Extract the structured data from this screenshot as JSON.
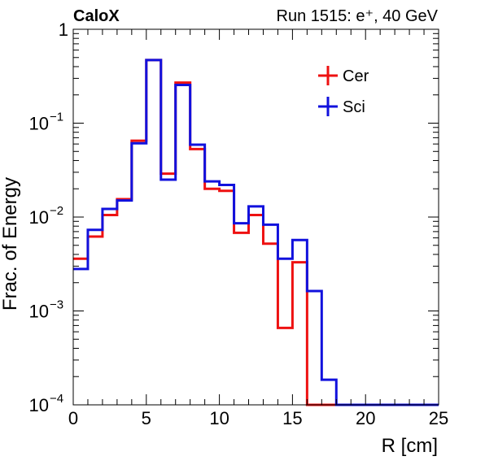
{
  "chart_data": {
    "type": "step-histogram",
    "brand_label": "CaloX",
    "run_label": "Run 1515: e⁺, 40 GeV",
    "xlabel": "R [cm]",
    "ylabel": "Frac. of Energy",
    "xlim": [
      0,
      25
    ],
    "ylim": [
      0.0001,
      1
    ],
    "yscale": "log",
    "bin_edges": [
      0,
      1,
      2,
      3,
      4,
      5,
      6,
      7,
      8,
      9,
      10,
      11,
      12,
      13,
      14,
      15,
      16,
      17,
      18,
      19,
      20,
      21,
      22,
      23,
      24,
      25
    ],
    "x_ticks": [
      {
        "value": 0,
        "label": "0"
      },
      {
        "value": 5,
        "label": "5"
      },
      {
        "value": 10,
        "label": "10"
      },
      {
        "value": 15,
        "label": "15"
      },
      {
        "value": 20,
        "label": "20"
      },
      {
        "value": 25,
        "label": "25"
      }
    ],
    "y_ticks": [
      {
        "value": 1,
        "base": "1",
        "exp": ""
      },
      {
        "value": 0.1,
        "base": "10",
        "exp": "−1"
      },
      {
        "value": 0.01,
        "base": "10",
        "exp": "−2"
      },
      {
        "value": 0.001,
        "base": "10",
        "exp": "−3"
      },
      {
        "value": 0.0001,
        "base": "10",
        "exp": "−4"
      }
    ],
    "legend_position": "top-right",
    "series": [
      {
        "name": "Cer",
        "color": "#ee1111",
        "values": [
          0.0036,
          0.0062,
          0.0105,
          0.0155,
          0.065,
          0.47,
          0.029,
          0.27,
          0.053,
          0.02,
          0.019,
          0.0068,
          0.0105,
          0.0052,
          0.00066,
          0.0033,
          0.0001,
          0.0001,
          0.0001,
          0.0001,
          0.0001,
          0.0001,
          0.0001,
          0.0001,
          0.0001
        ]
      },
      {
        "name": "Sci",
        "color": "#1111dd",
        "values": [
          0.0028,
          0.0073,
          0.0122,
          0.015,
          0.061,
          0.47,
          0.025,
          0.255,
          0.059,
          0.024,
          0.022,
          0.0086,
          0.013,
          0.0083,
          0.0036,
          0.0057,
          0.00163,
          0.000185,
          0.0001,
          0.0001,
          0.0001,
          0.0001,
          0.0001,
          0.0001,
          0.0001
        ]
      }
    ]
  }
}
